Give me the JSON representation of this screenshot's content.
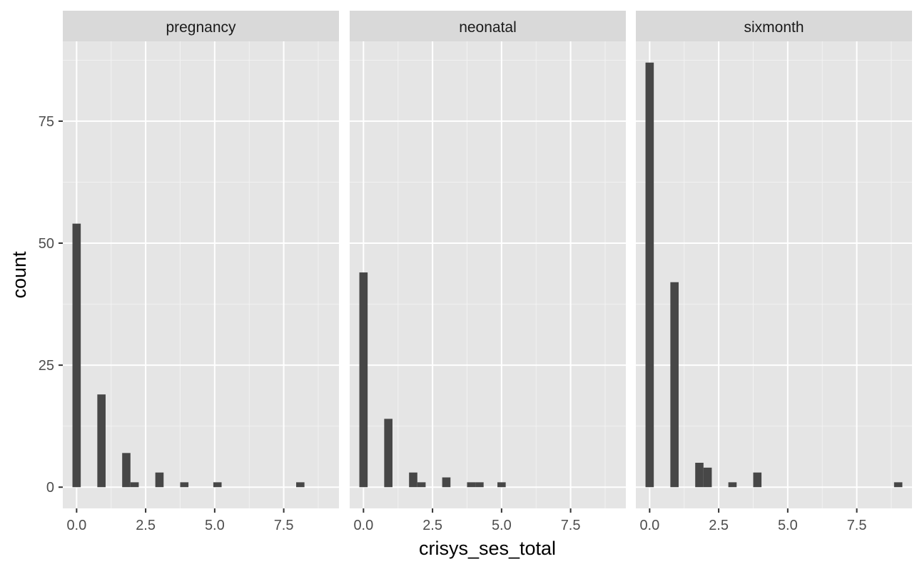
{
  "chart_data": {
    "type": "bar",
    "subtype": "histogram (faceted)",
    "xlabel": "crisys_ses_total",
    "ylabel": "count",
    "xlim": [
      -0.5,
      9.5
    ],
    "ylim": [
      -4.35,
      91.35
    ],
    "x_ticks": [
      0,
      2.5,
      5,
      7.5
    ],
    "x_tick_labels": [
      "0.0",
      "2.5",
      "5.0",
      "7.5"
    ],
    "y_ticks": [
      0,
      25,
      50,
      75
    ],
    "y_tick_labels": [
      "0",
      "25",
      "50",
      "75"
    ],
    "bin_width": 0.3,
    "grid": true,
    "bar_color": "#474747",
    "panel_background": "#e5e5e5",
    "strip_background": "#d9d9d9",
    "facets": [
      {
        "name": "pregnancy",
        "bins": [
          {
            "x": 0.0,
            "count": 54
          },
          {
            "x": 0.9,
            "count": 19
          },
          {
            "x": 1.8,
            "count": 7
          },
          {
            "x": 2.1,
            "count": 1
          },
          {
            "x": 3.0,
            "count": 3
          },
          {
            "x": 3.9,
            "count": 1
          },
          {
            "x": 5.1,
            "count": 1
          },
          {
            "x": 8.1,
            "count": 1
          }
        ]
      },
      {
        "name": "neonatal",
        "bins": [
          {
            "x": 0.0,
            "count": 44
          },
          {
            "x": 0.9,
            "count": 14
          },
          {
            "x": 1.8,
            "count": 3
          },
          {
            "x": 2.1,
            "count": 1
          },
          {
            "x": 3.0,
            "count": 2
          },
          {
            "x": 3.9,
            "count": 1
          },
          {
            "x": 4.2,
            "count": 1
          },
          {
            "x": 5.0,
            "count": 1
          }
        ]
      },
      {
        "name": "sixmonth",
        "bins": [
          {
            "x": 0.0,
            "count": 87
          },
          {
            "x": 0.9,
            "count": 42
          },
          {
            "x": 1.8,
            "count": 5
          },
          {
            "x": 2.1,
            "count": 4
          },
          {
            "x": 3.0,
            "count": 1
          },
          {
            "x": 3.9,
            "count": 3
          },
          {
            "x": 9.0,
            "count": 1
          }
        ]
      }
    ]
  }
}
